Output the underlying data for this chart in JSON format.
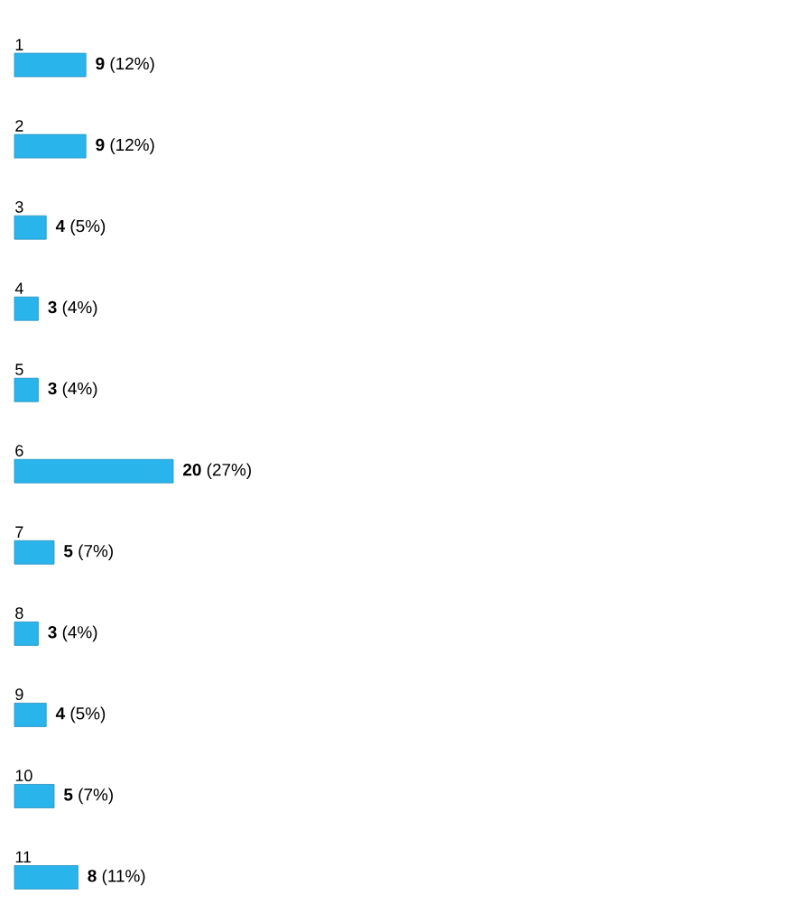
{
  "chart_data": {
    "type": "bar",
    "orientation": "horizontal",
    "categories": [
      "1",
      "2",
      "3",
      "4",
      "5",
      "6",
      "7",
      "8",
      "9",
      "10",
      "11"
    ],
    "values": [
      9,
      9,
      4,
      3,
      3,
      20,
      5,
      3,
      4,
      5,
      8
    ],
    "value_labels": [
      "**9** (12%)",
      "**9** (12%)",
      "**4** (5%)",
      "**3** (4%)",
      "**3** (4%)",
      "**20** (27%)",
      "**5** (7%)",
      "**3** (4%)",
      "**4** (5%)",
      "**5** (7%)",
      "**8** (11%)"
    ],
    "color": "#2ab4ec"
  }
}
